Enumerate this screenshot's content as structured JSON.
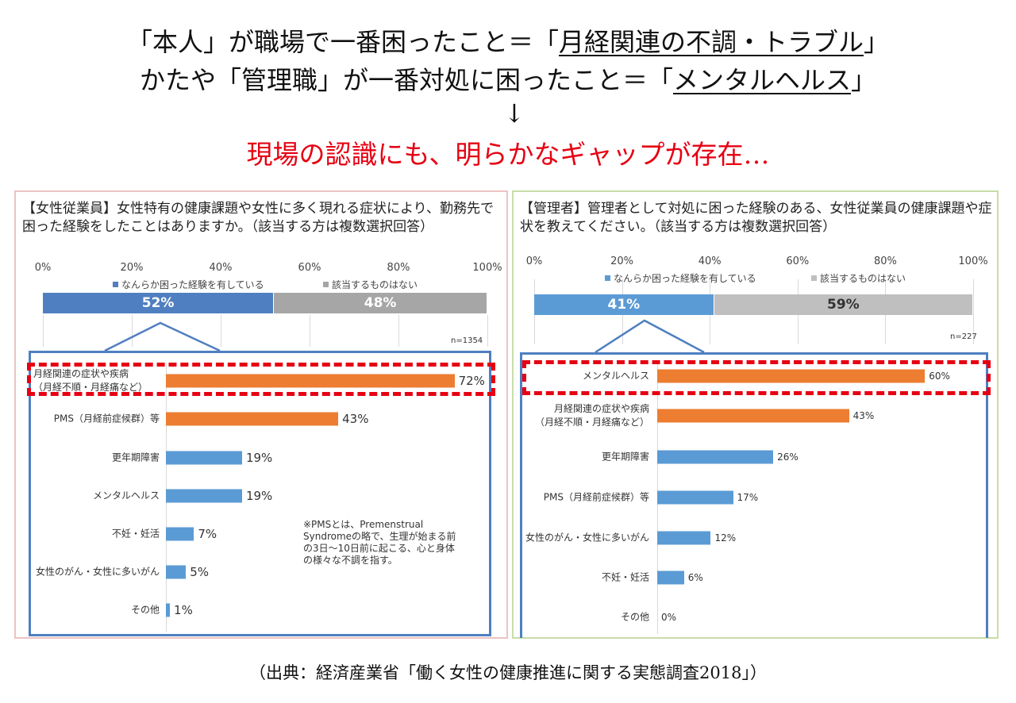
{
  "headline": {
    "line1_pre": "「本人」が職場で一番困ったこと＝「",
    "line1_u": "月経関連の不調・トラブル",
    "line1_post": "」",
    "line2_pre": "かたや「管理職」が一番対処に困ったこと＝「",
    "line2_u": "メンタルヘルス",
    "line2_post": "」",
    "arrow": "↓",
    "conclusion": "現場の認識にも、明らかなギャップが存在…"
  },
  "source": "（出典：経済産業省「働く女性の健康推進に関する実態調査2018」）",
  "colors": {
    "blue_dark": "#4f7fc0",
    "blue": "#5b9bd5",
    "gray": "#a6a6a6",
    "orange": "#ed7d31",
    "red": "#e60012"
  },
  "chart_data": [
    {
      "type": "bar",
      "orientation": "horizontal",
      "title": "【女性従業員】女性特有の健康課題や女性に多く現れる症状により、勤務先で困った経験をしたことはありますか。（該当する方は複数選択回答）",
      "stacked": {
        "ticks": [
          "0%",
          "20%",
          "40%",
          "60%",
          "80%",
          "100%"
        ],
        "xlim": [
          0,
          100
        ],
        "series": [
          {
            "name": "なんらか困った経験を有している",
            "value": 52,
            "label": "52%"
          },
          {
            "name": "該当するものはない",
            "value": 48,
            "label": "48%"
          }
        ]
      },
      "n": "n=1354",
      "categories": [
        "月経関連の症状や疾病\n（月経不順・月経痛など）",
        "PMS（月経前症候群）等",
        "更年期障害",
        "メンタルヘルス",
        "不妊・妊活",
        "女性のがん・女性に多いがん",
        "その他"
      ],
      "values": [
        72,
        43,
        19,
        19,
        7,
        5,
        1
      ],
      "labels": [
        "72%",
        "43%",
        "19%",
        "19%",
        "7%",
        "5%",
        "1%"
      ],
      "highlight_index": [
        0,
        1
      ],
      "note": "※PMSとは、Premenstrual Syndromeの略で、生理が始まる前の3日～10日前に起こる、心と身体の様々な不調を指す。"
    },
    {
      "type": "bar",
      "orientation": "horizontal",
      "title": "【管理者】管理者として対処に困った経験のある、女性従業員の健康課題や症状を教えてください。（該当する方は複数選択回答）",
      "stacked": {
        "ticks": [
          "0%",
          "20%",
          "40%",
          "60%",
          "80%",
          "100%"
        ],
        "xlim": [
          0,
          100
        ],
        "series": [
          {
            "name": "なんらか困った経験を有している",
            "value": 41,
            "label": "41%"
          },
          {
            "name": "該当するものはない",
            "value": 59,
            "label": "59%"
          }
        ]
      },
      "n": "n=227",
      "categories": [
        "メンタルヘルス",
        "月経関連の症状や疾病\n（月経不順・月経痛など）",
        "更年期障害",
        "PMS（月経前症候群）等",
        "女性のがん・女性に多いがん",
        "不妊・妊活",
        "その他"
      ],
      "values": [
        60,
        43,
        26,
        17,
        12,
        6,
        0
      ],
      "labels": [
        "60%",
        "43%",
        "26%",
        "17%",
        "12%",
        "6%",
        "0%"
      ],
      "highlight_index": [
        0,
        1
      ]
    }
  ]
}
